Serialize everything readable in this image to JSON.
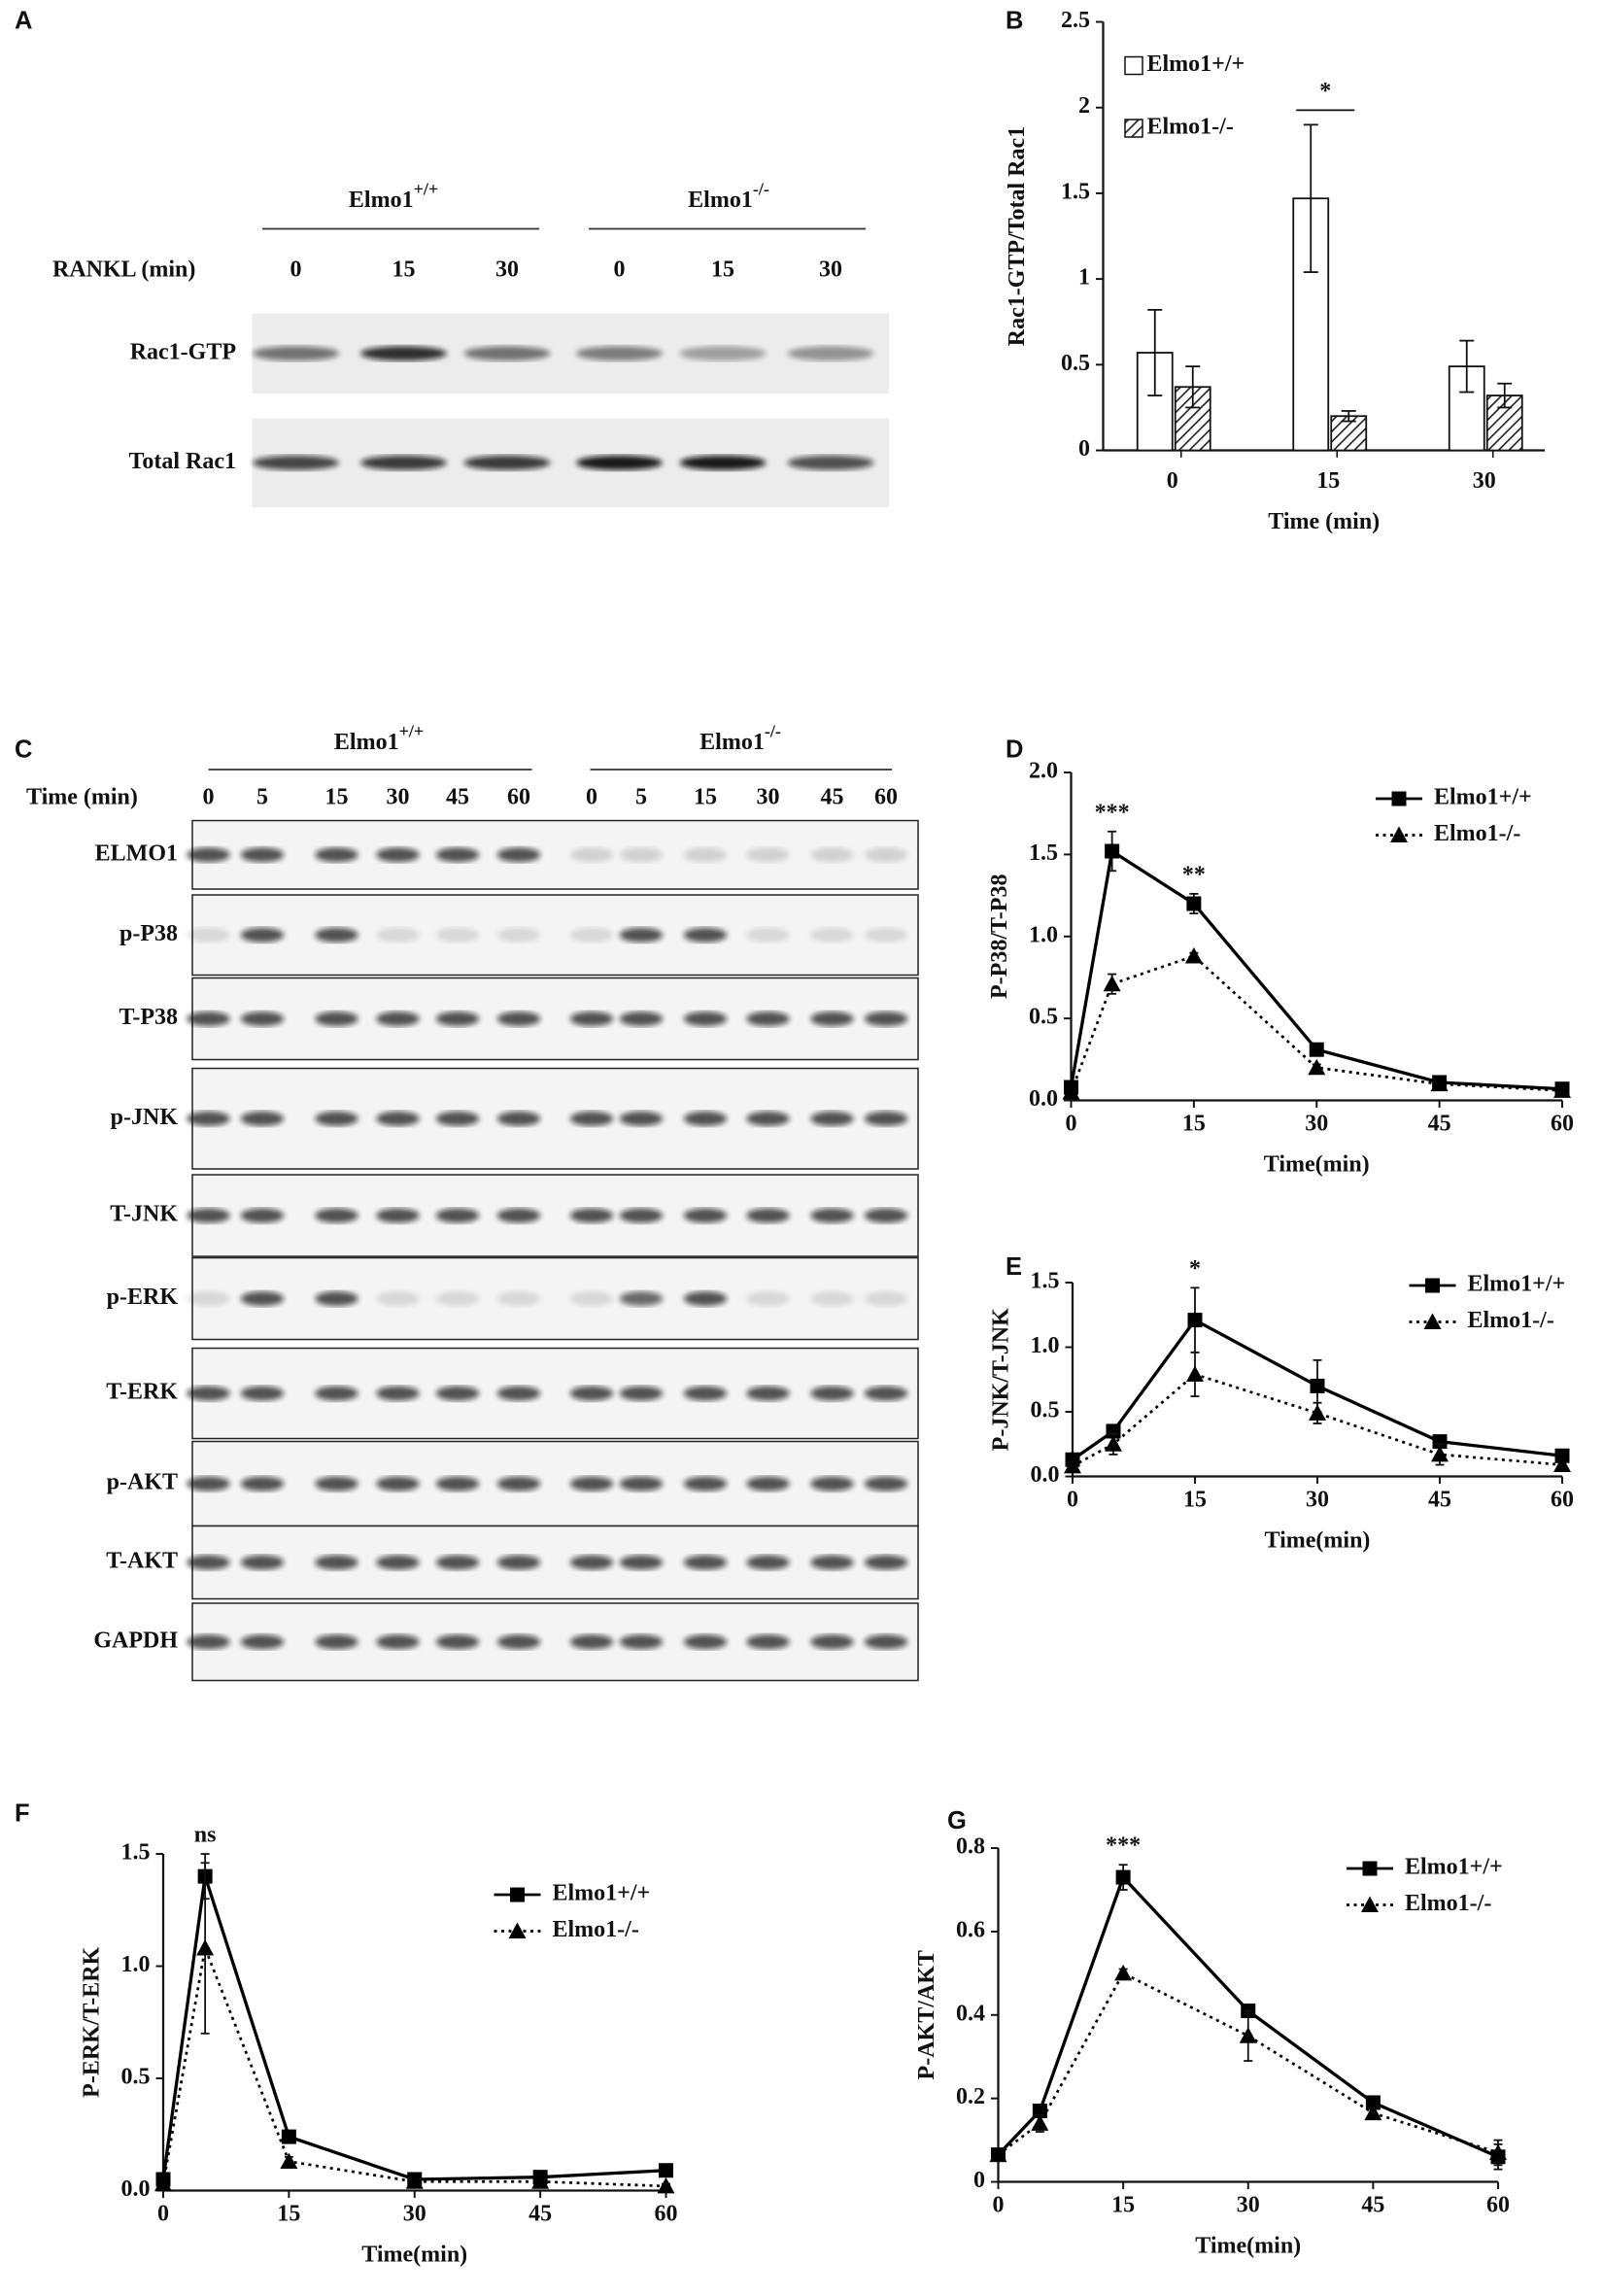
{
  "blots": [
    {
      "panel": "A",
      "groups": [
        {
          "name": "Elmo1",
          "genotype": "+/+"
        },
        {
          "name": "Elmo1",
          "genotype": "-/-"
        }
      ],
      "time_label": "RANKL (min)",
      "lanes": [
        "0",
        "15",
        "30",
        "0",
        "15",
        "30"
      ],
      "rows": [
        "Rac1-GTP",
        "Total Rac1"
      ]
    },
    {
      "panel": "C",
      "groups": [
        {
          "name": "Elmo1",
          "genotype": "+/+"
        },
        {
          "name": "Elmo1",
          "genotype": "-/-"
        }
      ],
      "time_label": "Time (min)",
      "lanes": [
        "0",
        "5",
        "15",
        "30",
        "45",
        "60",
        "0",
        "5",
        "15",
        "30",
        "45",
        "60"
      ],
      "rows": [
        "ELMO1",
        "p-P38",
        "T-P38",
        "p-JNK",
        "T-JNK",
        "p-ERK",
        "T-ERK",
        "p-AKT",
        "T-AKT",
        "GAPDH"
      ]
    }
  ],
  "chart_data": [
    {
      "type": "bar",
      "panel": "B",
      "ylabel": "Rac1-GTP/Total Rac1",
      "xlabel": "Time (min)",
      "categories": [
        "0",
        "15",
        "30"
      ],
      "series": [
        {
          "name": "Elmo1+/+",
          "color": "#ffffff",
          "values": [
            0.57,
            1.47,
            0.49
          ],
          "errors": [
            0.25,
            0.43,
            0.15
          ]
        },
        {
          "name": "Elmo1-/-",
          "color": "hatch",
          "values": [
            0.37,
            0.2,
            0.32
          ],
          "errors": [
            0.12,
            0.03,
            0.07
          ]
        }
      ],
      "ylim": [
        0,
        2.5
      ],
      "yticks": [
        0,
        0.5,
        1,
        1.5,
        2,
        2.5
      ],
      "annotations": [
        {
          "text": "*",
          "x": "15"
        }
      ],
      "legend": "upper left"
    },
    {
      "type": "line",
      "panel": "D",
      "ylabel": "P-P38/T-P38",
      "xlabel": "Time(min)",
      "x": [
        0,
        5,
        15,
        30,
        45,
        60
      ],
      "series": [
        {
          "name": "Elmo1+/+",
          "color": "#000000",
          "marker": "square",
          "linestyle": "solid",
          "values": [
            0.08,
            1.52,
            1.2,
            0.31,
            0.11,
            0.07
          ],
          "errors": [
            0.02,
            0.12,
            0.06,
            0.02,
            0.01,
            0.01
          ]
        },
        {
          "name": "Elmo1-/-",
          "color": "#000000",
          "marker": "triangle",
          "linestyle": "dotted",
          "values": [
            0.05,
            0.71,
            0.88,
            0.2,
            0.1,
            0.06
          ],
          "errors": [
            0.02,
            0.06,
            0.02,
            0.02,
            0.01,
            0.01
          ]
        }
      ],
      "xlim": [
        0,
        60
      ],
      "xticks": [
        0,
        15,
        30,
        45,
        60
      ],
      "ylim": [
        0,
        2
      ],
      "yticks": [
        {
          "value": 0,
          "label": "0.0"
        },
        {
          "value": 0.5,
          "label": "0.5"
        },
        {
          "value": 1,
          "label": "1.0"
        },
        {
          "value": 1.5,
          "label": "1.5"
        },
        {
          "value": 2,
          "label": "2.0"
        }
      ],
      "annotations": [
        {
          "text": "***",
          "x": 5
        },
        {
          "text": "**",
          "x": 15
        }
      ],
      "legend": "upper right"
    },
    {
      "type": "line",
      "panel": "E",
      "ylabel": "P-JNK/T-JNK",
      "xlabel": "Time(min)",
      "x": [
        0,
        5,
        15,
        30,
        45,
        60
      ],
      "series": [
        {
          "name": "Elmo1+/+",
          "color": "#000000",
          "marker": "square",
          "linestyle": "solid",
          "values": [
            0.13,
            0.35,
            1.21,
            0.7,
            0.27,
            0.16
          ],
          "errors": [
            0.02,
            0.05,
            0.25,
            0.2,
            0.02,
            0.02
          ]
        },
        {
          "name": "Elmo1-/-",
          "color": "#000000",
          "marker": "triangle",
          "linestyle": "dotted",
          "values": [
            0.08,
            0.25,
            0.79,
            0.49,
            0.17,
            0.09
          ],
          "errors": [
            0.02,
            0.08,
            0.17,
            0.08,
            0.08,
            0.02
          ]
        }
      ],
      "xlim": [
        0,
        60
      ],
      "xticks": [
        0,
        15,
        30,
        45,
        60
      ],
      "ylim": [
        0,
        1.5
      ],
      "yticks": [
        {
          "value": 0,
          "label": "0.0"
        },
        {
          "value": 0.5,
          "label": "0.5"
        },
        {
          "value": 1,
          "label": "1.0"
        },
        {
          "value": 1.5,
          "label": "1.5"
        }
      ],
      "annotations": [
        {
          "text": "*",
          "x": 15
        }
      ],
      "legend": "upper right"
    },
    {
      "type": "line",
      "panel": "F",
      "ylabel": "P-ERK/T-ERK",
      "xlabel": "Time(min)",
      "x": [
        0,
        5,
        15,
        30,
        45,
        60
      ],
      "series": [
        {
          "name": "Elmo1+/+",
          "color": "#000000",
          "marker": "square",
          "linestyle": "solid",
          "values": [
            0.05,
            1.4,
            0.24,
            0.05,
            0.06,
            0.09
          ],
          "errors": [
            0.01,
            0.1,
            0.02,
            0.01,
            0.01,
            0.01
          ]
        },
        {
          "name": "Elmo1-/-",
          "color": "#000000",
          "marker": "triangle",
          "linestyle": "dotted",
          "values": [
            0.03,
            1.08,
            0.13,
            0.04,
            0.04,
            0.02
          ],
          "errors": [
            0.01,
            0.38,
            0.02,
            0.01,
            0.01,
            0.01
          ]
        }
      ],
      "xlim": [
        0,
        60
      ],
      "xticks": [
        0,
        15,
        30,
        45,
        60
      ],
      "ylim": [
        0,
        1.5
      ],
      "yticks": [
        {
          "value": 0,
          "label": "0.0"
        },
        {
          "value": 0.5,
          "label": "0.5"
        },
        {
          "value": 1,
          "label": "1.0"
        },
        {
          "value": 1.5,
          "label": "1.5"
        }
      ],
      "annotations": [
        {
          "text": "ns",
          "x": 5
        }
      ],
      "legend": "upper right"
    },
    {
      "type": "line",
      "panel": "G",
      "ylabel": "P-AKT/AKT",
      "xlabel": "Time(min)",
      "x": [
        0,
        5,
        15,
        30,
        45,
        60
      ],
      "series": [
        {
          "name": "Elmo1+/+",
          "color": "#000000",
          "marker": "square",
          "linestyle": "solid",
          "values": [
            0.065,
            0.17,
            0.73,
            0.41,
            0.19,
            0.06
          ],
          "errors": [
            0.005,
            0.01,
            0.03,
            0.01,
            0.01,
            0.03
          ]
        },
        {
          "name": "Elmo1-/-",
          "color": "#000000",
          "marker": "triangle",
          "linestyle": "dotted",
          "values": [
            0.065,
            0.14,
            0.5,
            0.35,
            0.165,
            0.07
          ],
          "errors": [
            0.005,
            0.02,
            0.01,
            0.06,
            0.01,
            0.03
          ]
        }
      ],
      "xlim": [
        0,
        60
      ],
      "xticks": [
        0,
        15,
        30,
        45,
        60
      ],
      "ylim": [
        0,
        0.8
      ],
      "yticks": [
        0,
        0.2,
        0.4,
        0.6,
        0.8
      ],
      "annotations": [
        {
          "text": "***",
          "x": 15
        }
      ],
      "legend": "upper right"
    }
  ]
}
